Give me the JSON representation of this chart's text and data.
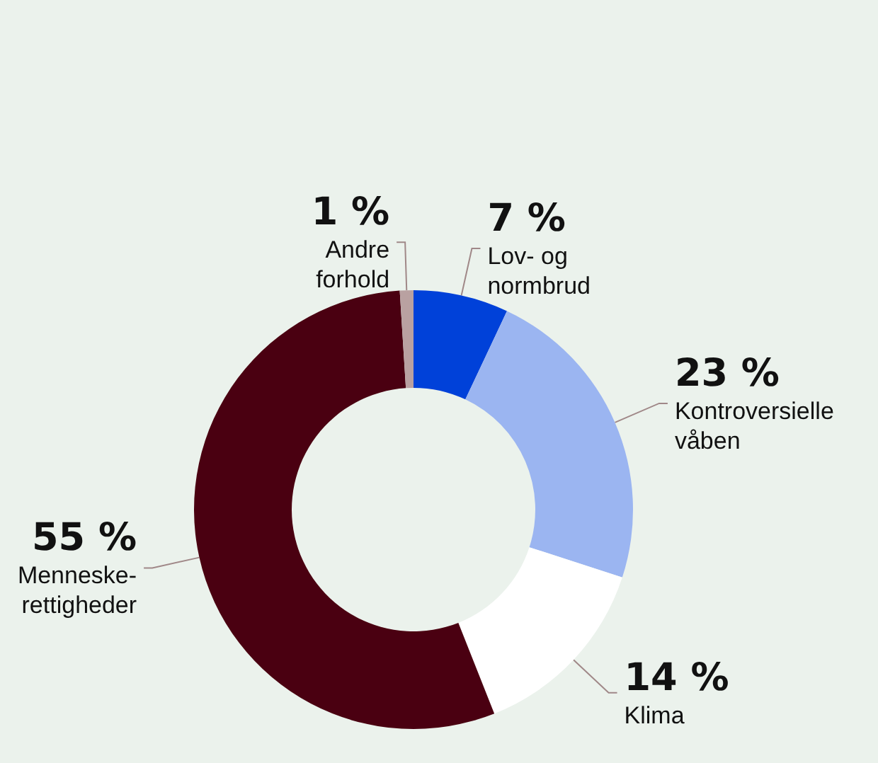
{
  "chart_data": {
    "type": "donut",
    "categories": [
      "Lov- og\nnormbrud",
      "Kontroversielle\nvåben",
      "Klima",
      "Menneske-\nrettigheder",
      "Andre\nforhold"
    ],
    "values": [
      7,
      23,
      14,
      55,
      1
    ],
    "value_labels": [
      "7 %",
      "23 %",
      "14 %",
      "55 %",
      "1 %"
    ],
    "colors": [
      "#0041d9",
      "#9bb5f1",
      "#ffffff",
      "#4a0011",
      "#b9a1a1"
    ],
    "legend": false
  }
}
